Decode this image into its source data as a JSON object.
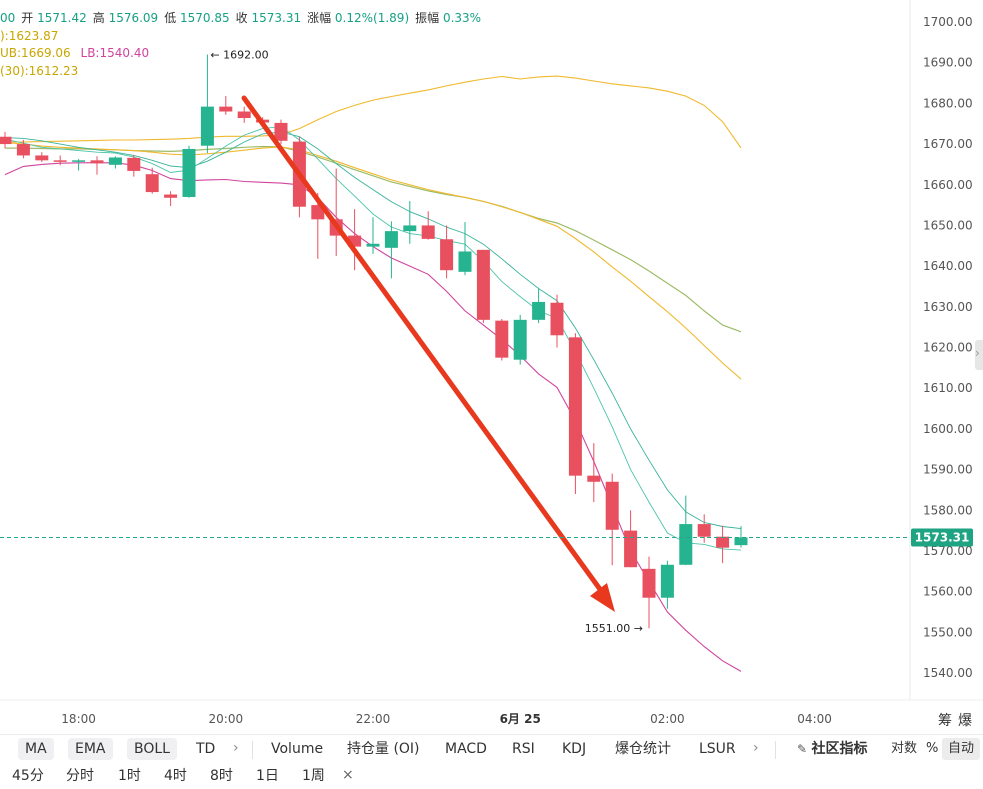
{
  "info": {
    "line1": [
      {
        "label": "",
        "value": "00"
      },
      {
        "label": "开",
        "value": "1571.42"
      },
      {
        "label": "高",
        "value": "1576.09"
      },
      {
        "label": "低",
        "value": "1570.85"
      },
      {
        "label": "收",
        "value": "1573.31"
      },
      {
        "label": "涨幅",
        "value": "0.12%(1.89)"
      },
      {
        "label": "振幅",
        "value": "0.33%"
      }
    ],
    "line2": "):1623.87",
    "line3_ub": "UB:1669.06",
    "line3_lb": "LB:1540.40",
    "line4": "(30):1612.23"
  },
  "toolbar_indicators": {
    "main": [
      "MA",
      "EMA",
      "BOLL",
      "TD"
    ],
    "sub": [
      "Volume",
      "持仓量 (OI)",
      "MACD",
      "RSI",
      "KDJ",
      "爆仓统计",
      "LSUR"
    ],
    "community": "社区指标",
    "log": "对数",
    "percent": "%",
    "auto": "自动"
  },
  "toolbar_intervals": [
    "45分",
    "分时",
    "1时",
    "4时",
    "8时",
    "1日",
    "1周"
  ],
  "right_axis_extra": [
    "筹",
    "爆"
  ],
  "close_icon": "×",
  "colors": {
    "up": "#26b38f",
    "down": "#e8505f",
    "ub": "#f0b92f",
    "mid": "#9ebc68",
    "lb": "#d1459d",
    "ma_fast": "#4cc4a8",
    "ma_slow": "#37b39a",
    "arrow": "#e8391f"
  },
  "chart_data": {
    "type": "candlestick",
    "y_ticks": [
      "1700.00",
      "1690.00",
      "1680.00",
      "1670.00",
      "1660.00",
      "1650.00",
      "1640.00",
      "1630.00",
      "1620.00",
      "1610.00",
      "1600.00",
      "1590.00",
      "1580.00",
      "1570.00",
      "1560.00",
      "1550.00",
      "1540.00"
    ],
    "ylim": [
      1536.7,
      1703.3
    ],
    "x_labels": [
      {
        "i": 4,
        "text": "18:00"
      },
      {
        "i": 12,
        "text": "20:00"
      },
      {
        "i": 20,
        "text": "22:00"
      },
      {
        "i": 28,
        "text": "6月 25",
        "bold": true
      },
      {
        "i": 36,
        "text": "02:00"
      },
      {
        "i": 44,
        "text": "04:00"
      }
    ],
    "last_price": "1573.31",
    "annotations": [
      {
        "text": "← 1692.00",
        "i": 11,
        "price": 1692.0,
        "side": "right"
      },
      {
        "text": "1551.00 →",
        "i": 35,
        "price": 1551.0,
        "side": "left"
      }
    ],
    "candles": [
      [
        1671.8,
        1673.0,
        1669.0,
        1670.0
      ],
      [
        1670.0,
        1671.0,
        1666.5,
        1667.2
      ],
      [
        1667.2,
        1668.0,
        1665.6,
        1666.0
      ],
      [
        1666.0,
        1667.2,
        1664.8,
        1665.8
      ],
      [
        1665.8,
        1666.3,
        1663.5,
        1666.0
      ],
      [
        1666.0,
        1667.0,
        1662.5,
        1665.3
      ],
      [
        1664.9,
        1667.0,
        1664.0,
        1666.7
      ],
      [
        1666.6,
        1667.3,
        1662.0,
        1663.4
      ],
      [
        1662.6,
        1664.2,
        1657.8,
        1658.2
      ],
      [
        1657.6,
        1658.4,
        1654.8,
        1656.8
      ],
      [
        1657.0,
        1669.6,
        1656.8,
        1668.8
      ],
      [
        1669.6,
        1692.0,
        1667.8,
        1679.2
      ],
      [
        1679.2,
        1681.8,
        1677.2,
        1678.0
      ],
      [
        1678.0,
        1679.2,
        1675.2,
        1676.4
      ],
      [
        1676.0,
        1676.6,
        1674.2,
        1675.3
      ],
      [
        1675.2,
        1676.0,
        1670.0,
        1670.8
      ],
      [
        1670.6,
        1671.8,
        1652.0,
        1654.6
      ],
      [
        1655.0,
        1658.0,
        1641.8,
        1651.5
      ],
      [
        1651.5,
        1664.0,
        1642.5,
        1647.5
      ],
      [
        1647.5,
        1654.0,
        1639.0,
        1644.8
      ],
      [
        1644.8,
        1652.0,
        1643.0,
        1645.5
      ],
      [
        1644.5,
        1651.0,
        1637.0,
        1648.6
      ],
      [
        1648.6,
        1656.0,
        1645.5,
        1650.0
      ],
      [
        1650.0,
        1653.5,
        1646.5,
        1646.7
      ],
      [
        1646.6,
        1650.0,
        1637.0,
        1639.0
      ],
      [
        1638.6,
        1650.8,
        1637.8,
        1643.6
      ],
      [
        1644.0,
        1644.0,
        1626.0,
        1626.8
      ],
      [
        1626.6,
        1627.0,
        1616.8,
        1617.5
      ],
      [
        1617.0,
        1628.0,
        1615.8,
        1626.8
      ],
      [
        1626.8,
        1634.5,
        1626.0,
        1631.2
      ],
      [
        1631.0,
        1633.0,
        1620.0,
        1623.0
      ],
      [
        1622.5,
        1623.5,
        1584.0,
        1588.5
      ],
      [
        1588.5,
        1596.5,
        1582.0,
        1587.0
      ],
      [
        1587.0,
        1589.0,
        1566.5,
        1575.2
      ],
      [
        1575.0,
        1580.0,
        1566.0,
        1566.0
      ],
      [
        1565.6,
        1568.6,
        1551.0,
        1558.5
      ],
      [
        1558.5,
        1567.6,
        1555.8,
        1566.6
      ],
      [
        1566.6,
        1583.6,
        1566.5,
        1576.6
      ],
      [
        1576.6,
        1579.0,
        1572.0,
        1573.5
      ],
      [
        1573.5,
        1576.2,
        1567.0,
        1570.8
      ],
      [
        1571.42,
        1576.09,
        1570.85,
        1573.31
      ]
    ],
    "boll_ub": [
      1670.5,
      1670.5,
      1670.6,
      1670.7,
      1670.8,
      1670.9,
      1671.0,
      1671.0,
      1671.1,
      1671.2,
      1671.4,
      1671.7,
      1671.9,
      1671.9,
      1672.0,
      1672.3,
      1673.8,
      1676.0,
      1678.0,
      1679.5,
      1680.8,
      1681.7,
      1682.5,
      1683.3,
      1684.3,
      1685.2,
      1686.0,
      1686.6,
      1686.0,
      1686.5,
      1686.7,
      1686.2,
      1685.5,
      1684.8,
      1684.3,
      1683.8,
      1683.0,
      1681.8,
      1679.5,
      1675.5,
      1669.06
    ],
    "boll_mid": [
      1669.0,
      1669.0,
      1668.9,
      1668.8,
      1668.8,
      1668.7,
      1668.6,
      1668.4,
      1668.3,
      1668.2,
      1668.4,
      1668.7,
      1668.9,
      1669.2,
      1669.4,
      1669.3,
      1668.2,
      1666.8,
      1665.3,
      1663.7,
      1662.2,
      1660.7,
      1659.6,
      1658.5,
      1657.6,
      1656.9,
      1655.9,
      1654.7,
      1653.2,
      1651.7,
      1650.6,
      1648.7,
      1646.4,
      1644.0,
      1641.6,
      1638.8,
      1635.8,
      1632.8,
      1629.0,
      1625.5,
      1623.87
    ],
    "boll_lb": [
      1662.5,
      1664.5,
      1665.0,
      1665.3,
      1665.4,
      1665.4,
      1665.4,
      1664.8,
      1663.5,
      1661.5,
      1661.0,
      1661.2,
      1661.3,
      1660.8,
      1660.6,
      1660.4,
      1660.0,
      1656.8,
      1652.0,
      1648.0,
      1644.8,
      1642.0,
      1640.0,
      1638.0,
      1633.8,
      1629.0,
      1625.5,
      1622.0,
      1618.0,
      1613.5,
      1610.2,
      1602.0,
      1592.0,
      1581.0,
      1570.0,
      1562.5,
      1555.0,
      1550.5,
      1546.5,
      1543.0,
      1540.4
    ],
    "ma_slow": [
      1670.4,
      1670.0,
      1669.5,
      1669.2,
      1669.0,
      1668.8,
      1668.6,
      1668.4,
      1668.0,
      1667.5,
      1667.3,
      1667.6,
      1668.0,
      1668.5,
      1669.0,
      1669.3,
      1668.6,
      1667.2,
      1665.8,
      1664.2,
      1662.7,
      1661.2,
      1660.0,
      1658.8,
      1657.8,
      1656.9,
      1655.9,
      1654.6,
      1653.2,
      1651.5,
      1649.8,
      1646.8,
      1643.5,
      1639.8,
      1636.3,
      1632.5,
      1628.8,
      1624.8,
      1620.5,
      1616.2,
      1612.23
    ],
    "ma_fast1": [
      1671.2,
      1670.2,
      1669.2,
      1668.8,
      1668.4,
      1668.0,
      1667.8,
      1666.8,
      1665.2,
      1663.0,
      1663.6,
      1666.5,
      1669.5,
      1672.2,
      1673.8,
      1674.3,
      1671.0,
      1666.3,
      1661.5,
      1657.2,
      1652.8,
      1649.6,
      1648.0,
      1647.4,
      1646.3,
      1645.4,
      1641.2,
      1636.2,
      1632.5,
      1629.0,
      1627.2,
      1619.0,
      1610.0,
      1600.5,
      1590.0,
      1582.0,
      1574.4,
      1572.0,
      1571.6,
      1570.5,
      1570.2
    ],
    "ma_fast2": [
      1671.6,
      1671.4,
      1670.8,
      1670.0,
      1669.2,
      1668.6,
      1668.0,
      1667.2,
      1666.0,
      1664.6,
      1664.2,
      1665.8,
      1668.0,
      1670.5,
      1672.5,
      1673.0,
      1671.8,
      1668.8,
      1665.2,
      1661.8,
      1658.8,
      1655.8,
      1653.4,
      1651.6,
      1649.6,
      1648.0,
      1645.4,
      1641.8,
      1638.0,
      1634.5,
      1631.5,
      1624.8,
      1617.0,
      1608.8,
      1600.0,
      1592.3,
      1585.0,
      1579.6,
      1577.0,
      1576.0,
      1575.5
    ]
  }
}
